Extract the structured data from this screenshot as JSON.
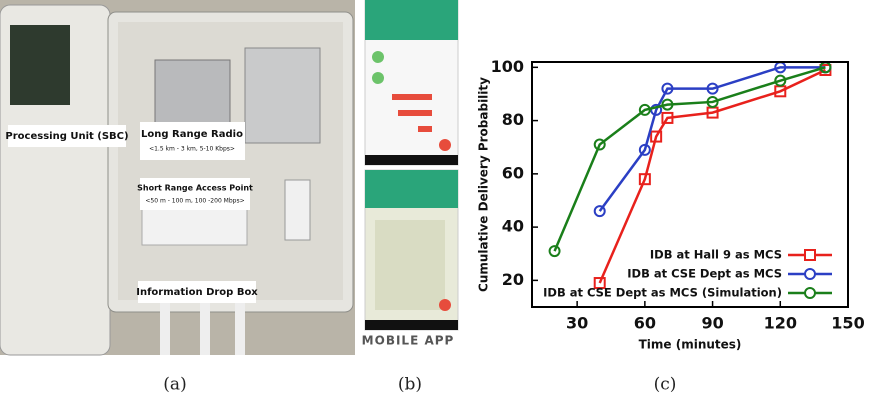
{
  "panels": {
    "a": "(a)",
    "b": "(b)",
    "c": "(c)"
  },
  "photo": {
    "labels": [
      "Processing Unit (SBC)",
      "Long Range Radio",
      "<1.5 km - 3 km, 5-10 Kbps>",
      "Short Range Access Point",
      "<50 m - 100 m, 100 -200 Mbps>",
      "Information Drop Box"
    ]
  },
  "app": {
    "caption": "MOBILE APP"
  },
  "chart_data": {
    "type": "line",
    "xlabel": "Time (minutes)",
    "ylabel": "Cumulative Delivery Probability",
    "xlim": [
      10,
      150
    ],
    "ylim": [
      10,
      102
    ],
    "xticks": [
      30,
      60,
      90,
      120,
      150
    ],
    "yticks": [
      20,
      40,
      60,
      80,
      100
    ],
    "legend": "lower right",
    "series": [
      {
        "name": "IDB at Hall 9 as MCS",
        "color": "#e8211c",
        "marker": "square",
        "x": [
          40,
          60,
          65,
          70,
          90,
          120,
          140
        ],
        "values": [
          19,
          58,
          74,
          81,
          83,
          91,
          99
        ]
      },
      {
        "name": "IDB at CSE Dept as MCS",
        "color": "#2b3fc4",
        "marker": "circle",
        "x": [
          40,
          60,
          65,
          70,
          90,
          120,
          140
        ],
        "values": [
          46,
          69,
          84,
          92,
          92,
          100,
          100
        ]
      },
      {
        "name": "IDB at CSE Dept as MCS (Simulation)",
        "color": "#1a7f1a",
        "marker": "circle",
        "x": [
          20,
          40,
          60,
          70,
          90,
          120,
          140
        ],
        "values": [
          31,
          71,
          84,
          86,
          87,
          95,
          100
        ]
      }
    ]
  }
}
